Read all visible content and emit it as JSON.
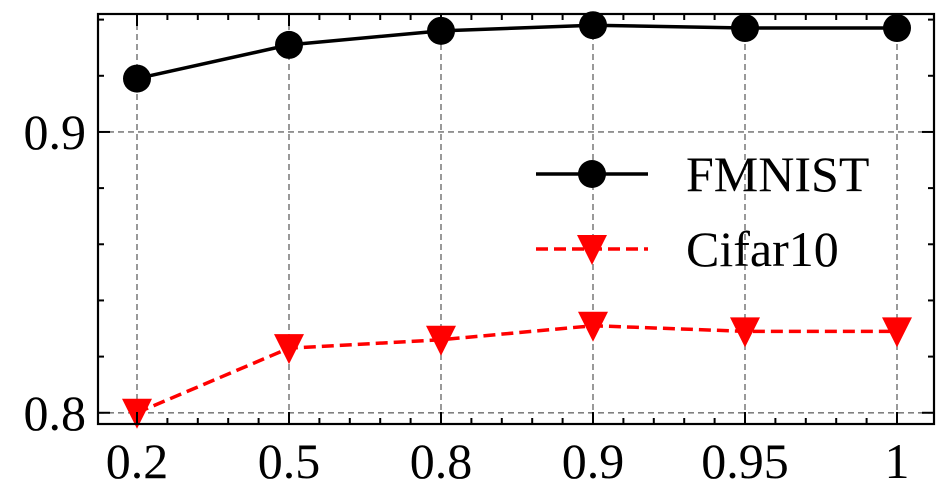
{
  "chart_data": {
    "type": "line",
    "title": "",
    "xlabel": "",
    "ylabel": "",
    "categories": [
      "0.2",
      "0.5",
      "0.8",
      "0.9",
      "0.95",
      "1"
    ],
    "y_ticks": [
      "0.8",
      "0.9"
    ],
    "y_tick_values": [
      0.8,
      0.9
    ],
    "ylim": [
      0.796,
      0.942
    ],
    "grid": true,
    "legend_position": "center-right",
    "series": [
      {
        "name": "FMNIST",
        "values": [
          0.919,
          0.931,
          0.936,
          0.938,
          0.937,
          0.937
        ],
        "color": "#000000",
        "line_style": "solid",
        "marker": "circle"
      },
      {
        "name": "Cifar10",
        "values": [
          0.8,
          0.823,
          0.826,
          0.831,
          0.829,
          0.829
        ],
        "color": "#ff0000",
        "line_style": "dashed",
        "marker": "triangle-down"
      }
    ]
  }
}
